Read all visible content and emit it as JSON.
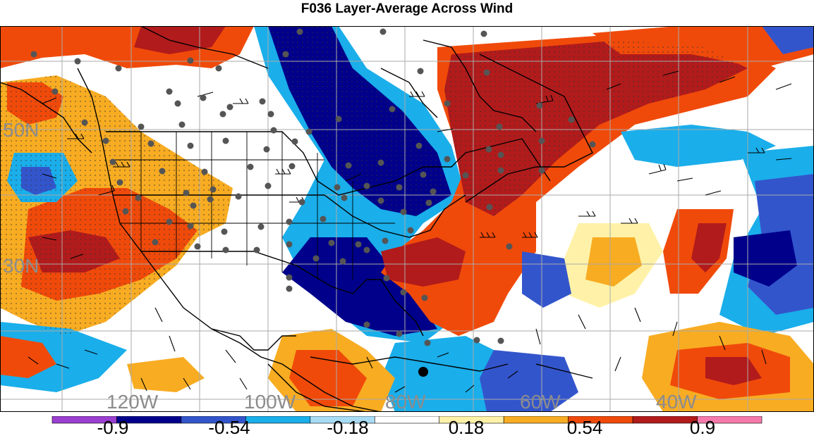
{
  "title": "F036 Layer-Average Across Wind",
  "map": {
    "latitude_labels": [
      "50N",
      "30N"
    ],
    "longitude_labels": [
      "120W",
      "100W",
      "80W",
      "60W",
      "40W"
    ],
    "label_color": "#8c8c8c"
  },
  "colorbar": {
    "colors": [
      "#9b3fd0",
      "#00008b",
      "#3355cc",
      "#1aaeea",
      "#a8dcf4",
      "#ffffff",
      "#fff2a8",
      "#f8ac22",
      "#f04a0a",
      "#b21b1b",
      "#f57aab"
    ],
    "tick_labels": [
      "-0.9",
      "-0.54",
      "-0.18",
      "0.18",
      "0.54",
      "0.9"
    ]
  }
}
